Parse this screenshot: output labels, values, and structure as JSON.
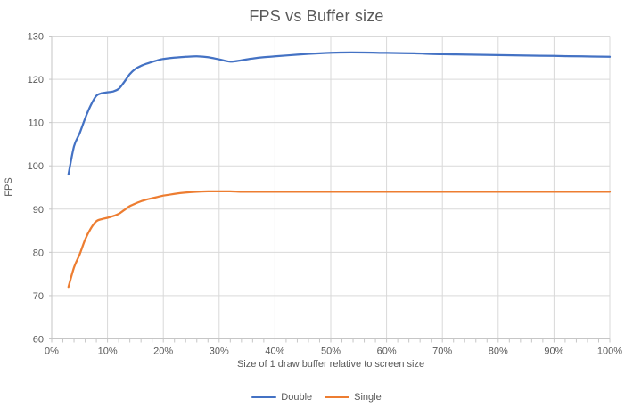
{
  "chart_data": {
    "type": "line",
    "title": "FPS vs Buffer size",
    "xlabel": "Size of 1 draw buffer relative to screen size",
    "ylabel": "FPS",
    "xlim": [
      0,
      100
    ],
    "ylim": [
      60,
      130
    ],
    "grid": true,
    "smooth": true,
    "legend_position": "bottom",
    "xticks": [
      {
        "v": 0,
        "label": "0%"
      },
      {
        "v": 10,
        "label": "10%"
      },
      {
        "v": 20,
        "label": "20%"
      },
      {
        "v": 30,
        "label": "30%"
      },
      {
        "v": 40,
        "label": "40%"
      },
      {
        "v": 50,
        "label": "50%"
      },
      {
        "v": 60,
        "label": "60%"
      },
      {
        "v": 70,
        "label": "70%"
      },
      {
        "v": 80,
        "label": "80%"
      },
      {
        "v": 90,
        "label": "90%"
      },
      {
        "v": 100,
        "label": "100%"
      }
    ],
    "minor_xtick_step": 2,
    "yticks": [
      {
        "v": 60,
        "label": "60"
      },
      {
        "v": 70,
        "label": "70"
      },
      {
        "v": 80,
        "label": "80"
      },
      {
        "v": 90,
        "label": "90"
      },
      {
        "v": 100,
        "label": "100"
      },
      {
        "v": 110,
        "label": "110"
      },
      {
        "v": 120,
        "label": "120"
      },
      {
        "v": 130,
        "label": "130"
      }
    ],
    "series": [
      {
        "name": "Double",
        "color": "#4472C4",
        "points": [
          [
            3,
            98
          ],
          [
            4,
            104.5
          ],
          [
            5,
            107.5
          ],
          [
            6,
            111
          ],
          [
            7,
            114
          ],
          [
            8,
            116.2
          ],
          [
            9,
            116.8
          ],
          [
            10,
            117
          ],
          [
            11,
            117.2
          ],
          [
            12,
            117.8
          ],
          [
            13,
            119.4
          ],
          [
            14,
            121.2
          ],
          [
            15,
            122.4
          ],
          [
            16,
            123.1
          ],
          [
            17,
            123.6
          ],
          [
            18,
            124
          ],
          [
            19,
            124.4
          ],
          [
            20,
            124.7
          ],
          [
            22,
            125
          ],
          [
            24,
            125.2
          ],
          [
            26,
            125.3
          ],
          [
            28,
            125.1
          ],
          [
            30,
            124.6
          ],
          [
            32,
            124.1
          ],
          [
            34,
            124.4
          ],
          [
            36,
            124.8
          ],
          [
            38,
            125.1
          ],
          [
            40,
            125.3
          ],
          [
            44,
            125.7
          ],
          [
            48,
            126
          ],
          [
            52,
            126.2
          ],
          [
            56,
            126.2
          ],
          [
            60,
            126.1
          ],
          [
            65,
            126
          ],
          [
            70,
            125.8
          ],
          [
            75,
            125.7
          ],
          [
            80,
            125.6
          ],
          [
            85,
            125.5
          ],
          [
            90,
            125.4
          ],
          [
            95,
            125.3
          ],
          [
            100,
            125.2
          ]
        ]
      },
      {
        "name": "Single",
        "color": "#ED7D31",
        "points": [
          [
            3,
            72
          ],
          [
            4,
            76.5
          ],
          [
            5,
            79.5
          ],
          [
            6,
            83
          ],
          [
            7,
            85.5
          ],
          [
            8,
            87.2
          ],
          [
            9,
            87.7
          ],
          [
            10,
            88
          ],
          [
            11,
            88.4
          ],
          [
            12,
            88.9
          ],
          [
            13,
            89.8
          ],
          [
            14,
            90.7
          ],
          [
            15,
            91.3
          ],
          [
            16,
            91.8
          ],
          [
            17,
            92.2
          ],
          [
            18,
            92.5
          ],
          [
            19,
            92.8
          ],
          [
            20,
            93.1
          ],
          [
            22,
            93.5
          ],
          [
            24,
            93.8
          ],
          [
            26,
            94
          ],
          [
            28,
            94.1
          ],
          [
            30,
            94.1
          ],
          [
            32,
            94.1
          ],
          [
            34,
            94
          ],
          [
            36,
            94
          ],
          [
            40,
            94
          ],
          [
            45,
            94
          ],
          [
            50,
            94
          ],
          [
            55,
            94
          ],
          [
            60,
            94
          ],
          [
            65,
            94
          ],
          [
            70,
            94
          ],
          [
            75,
            94
          ],
          [
            80,
            94
          ],
          [
            85,
            94
          ],
          [
            90,
            94
          ],
          [
            95,
            94
          ],
          [
            100,
            94
          ]
        ]
      }
    ],
    "colors": {
      "gridline": "#D9D9D9",
      "axis_line": "#C6C6C6",
      "text": "#595959"
    }
  }
}
